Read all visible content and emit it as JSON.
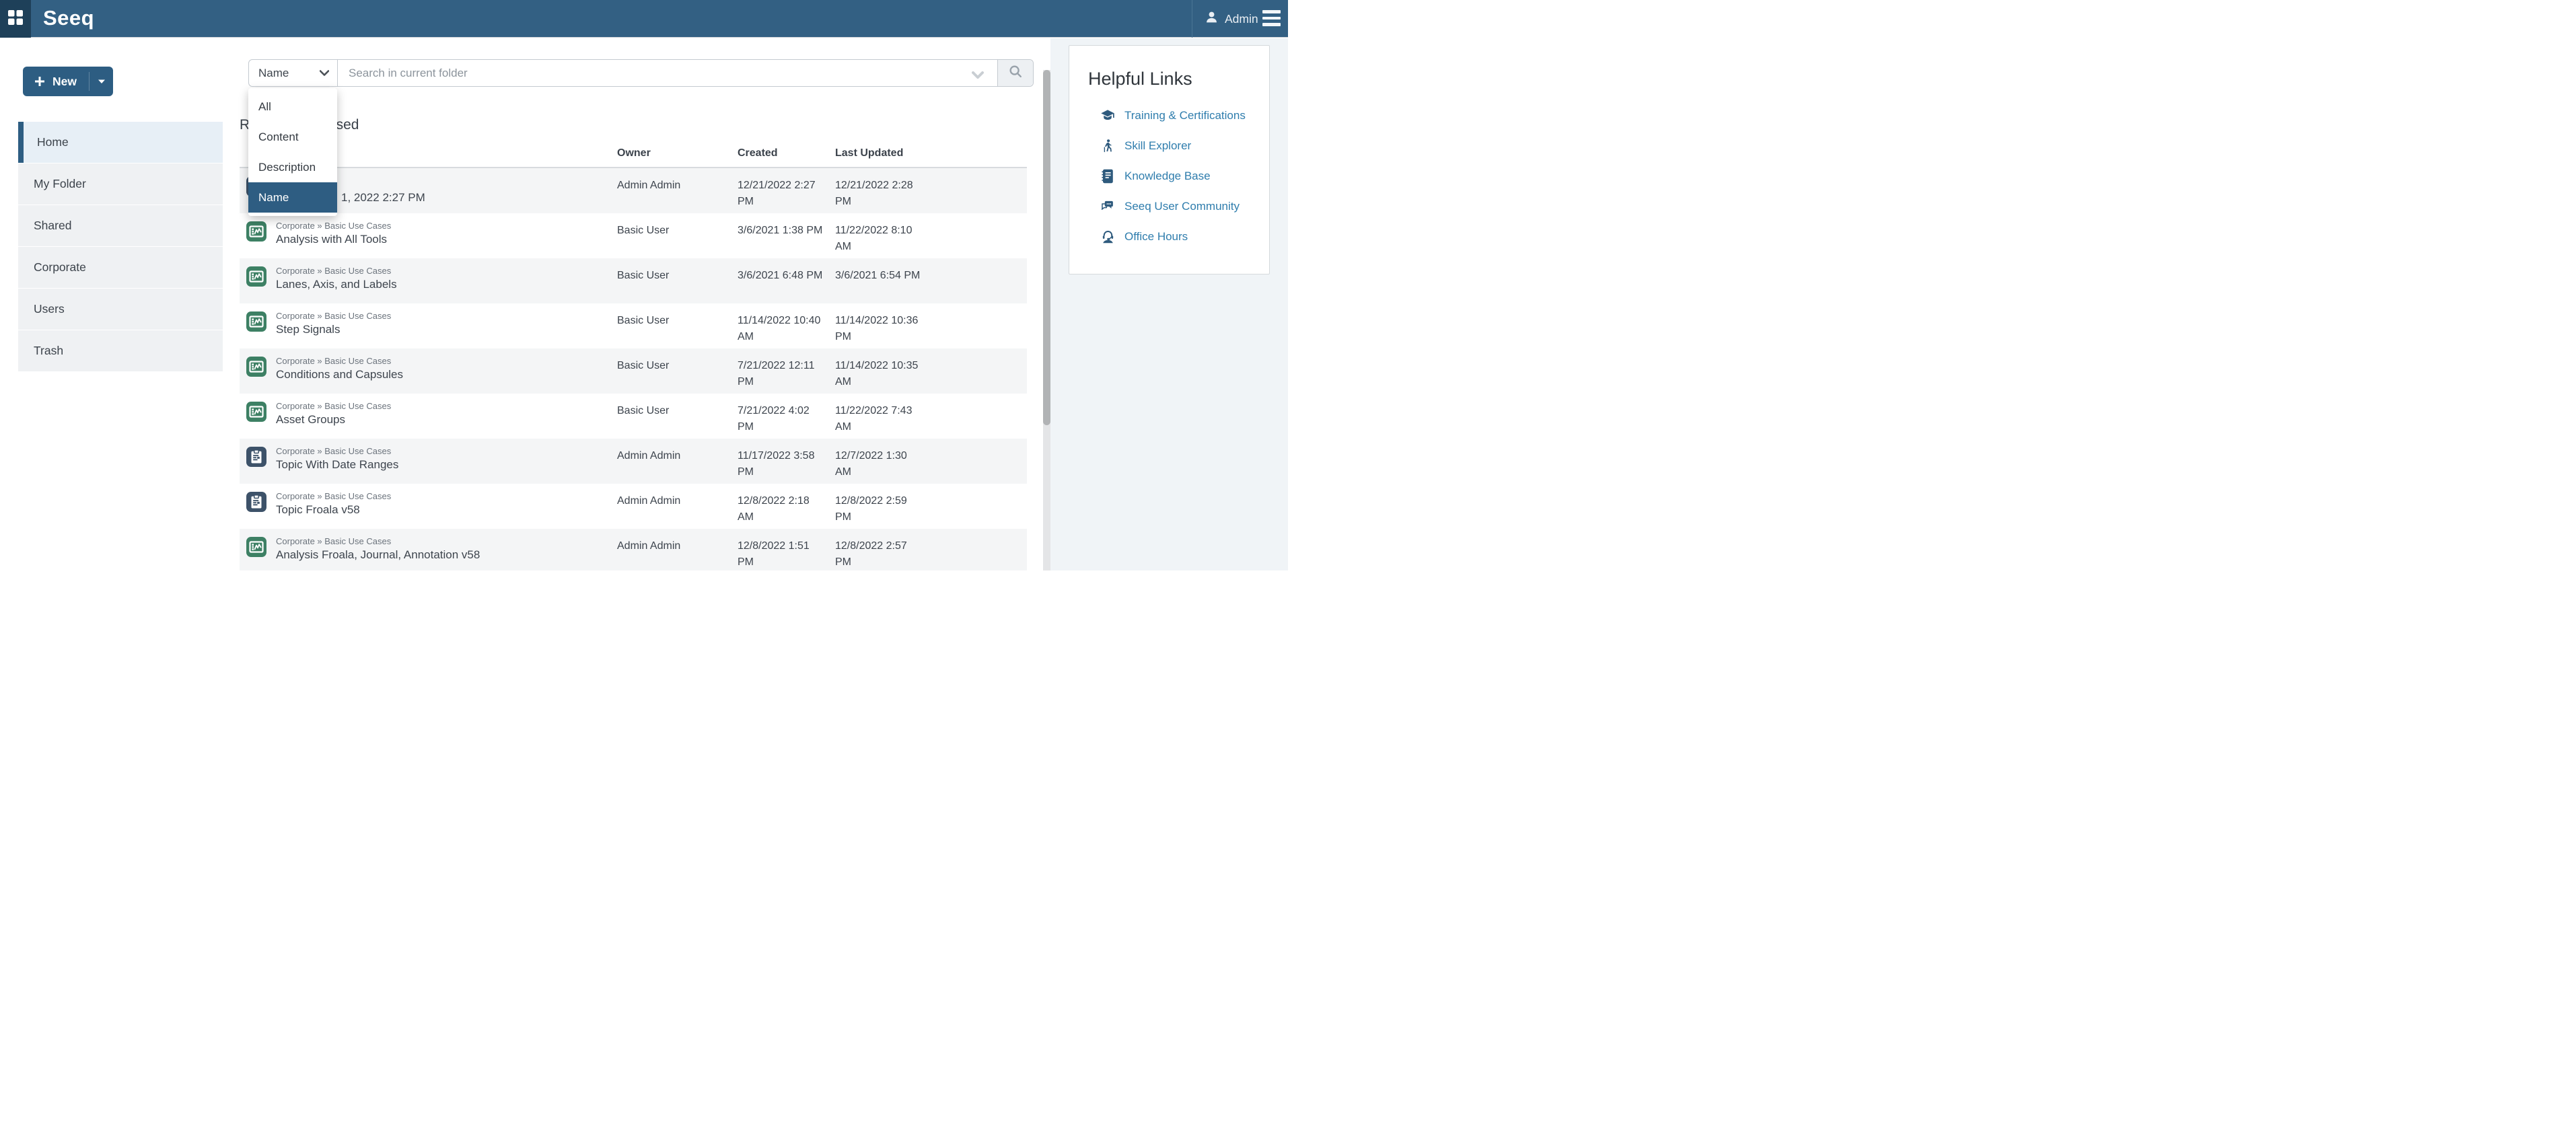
{
  "colors": {
    "navbar_bg": "#336083",
    "navbar_square_bg": "#1e4059",
    "accent_blue": "#2d5d82",
    "menu_highlight_bg": "#2e5d82",
    "sidebar_item_bg": "#eff1f3",
    "sidebar_active_bg": "#e7eff6",
    "row_stripe_bg": "#f4f5f6",
    "analysis_icon_green": "#3d8064",
    "topic_icon_blue": "#3d5269",
    "link_text_blue": "#2f7dad",
    "link_icon_blue": "#2e5a7d"
  },
  "navbar": {
    "logo": "Seeq",
    "user": "Admin"
  },
  "sidebar": {
    "new_label": "New",
    "items": [
      {
        "label": "Home",
        "active": true
      },
      {
        "label": "My Folder",
        "active": false
      },
      {
        "label": "Shared",
        "active": false
      },
      {
        "label": "Corporate",
        "active": false
      },
      {
        "label": "Users",
        "active": false
      },
      {
        "label": "Trash",
        "active": false
      }
    ]
  },
  "search": {
    "filter": "Name",
    "placeholder": "Search in current folder",
    "options": [
      "All",
      "Content",
      "Description",
      "Name"
    ],
    "selected_option": "Name"
  },
  "main": {
    "title": "Recently Accessed",
    "columns": {
      "name": "Name",
      "owner": "Owner",
      "created": "Created",
      "updated": "Last Updated"
    },
    "rows": [
      {
        "type": "topic",
        "breadcrumb": "",
        "name": "1, 2022 2:27 PM",
        "owner": "Admin Admin",
        "created": {
          "l1": "12/21/2022 2:27",
          "l2": "PM"
        },
        "updated": {
          "l1": "12/21/2022 2:28",
          "l2": "PM"
        }
      },
      {
        "type": "analysis",
        "breadcrumb": "Corporate » Basic Use Cases",
        "name": "Analysis with All Tools",
        "owner": "Basic User",
        "created": {
          "l1": "3/6/2021 1:38 PM",
          "l2": ""
        },
        "updated": {
          "l1": "11/22/2022 8:10",
          "l2": "AM"
        }
      },
      {
        "type": "analysis",
        "breadcrumb": "Corporate » Basic Use Cases",
        "name": "Lanes, Axis, and Labels",
        "owner": "Basic User",
        "created": {
          "l1": "3/6/2021 6:48 PM",
          "l2": ""
        },
        "updated": {
          "l1": "3/6/2021 6:54 PM",
          "l2": ""
        }
      },
      {
        "type": "analysis",
        "breadcrumb": "Corporate » Basic Use Cases",
        "name": "Step Signals",
        "owner": "Basic User",
        "created": {
          "l1": "11/14/2022 10:40",
          "l2": "AM"
        },
        "updated": {
          "l1": "11/14/2022 10:36",
          "l2": "PM"
        }
      },
      {
        "type": "analysis",
        "breadcrumb": "Corporate » Basic Use Cases",
        "name": "Conditions and Capsules",
        "owner": "Basic User",
        "created": {
          "l1": "7/21/2022 12:11",
          "l2": "PM"
        },
        "updated": {
          "l1": "11/14/2022 10:35",
          "l2": "AM"
        }
      },
      {
        "type": "analysis",
        "breadcrumb": "Corporate » Basic Use Cases",
        "name": "Asset Groups",
        "owner": "Basic User",
        "created": {
          "l1": "7/21/2022 4:02",
          "l2": "PM"
        },
        "updated": {
          "l1": "11/22/2022 7:43",
          "l2": "AM"
        }
      },
      {
        "type": "topic",
        "breadcrumb": "Corporate » Basic Use Cases",
        "name": "Topic With Date Ranges",
        "owner": "Admin Admin",
        "created": {
          "l1": "11/17/2022 3:58",
          "l2": "PM"
        },
        "updated": {
          "l1": "12/7/2022 1:30",
          "l2": "AM"
        }
      },
      {
        "type": "topic",
        "breadcrumb": "Corporate » Basic Use Cases",
        "name": "Topic Froala v58",
        "owner": "Admin Admin",
        "created": {
          "l1": "12/8/2022 2:18",
          "l2": "AM"
        },
        "updated": {
          "l1": "12/8/2022 2:59",
          "l2": "PM"
        }
      },
      {
        "type": "analysis",
        "breadcrumb": "Corporate » Basic Use Cases",
        "name": "Analysis Froala, Journal, Annotation v58",
        "owner": "Admin Admin",
        "created": {
          "l1": "12/8/2022 1:51",
          "l2": "PM"
        },
        "updated": {
          "l1": "12/8/2022 2:57",
          "l2": "PM"
        }
      }
    ]
  },
  "helpful_links": {
    "title": "Helpful Links",
    "links": [
      {
        "icon": "graduation-cap-icon",
        "label": "Training & Certifications"
      },
      {
        "icon": "hiker-icon",
        "label": "Skill Explorer"
      },
      {
        "icon": "journal-icon",
        "label": "Knowledge Base"
      },
      {
        "icon": "comments-icon",
        "label": "Seeq User Community"
      },
      {
        "icon": "headset-icon",
        "label": "Office Hours"
      }
    ]
  }
}
